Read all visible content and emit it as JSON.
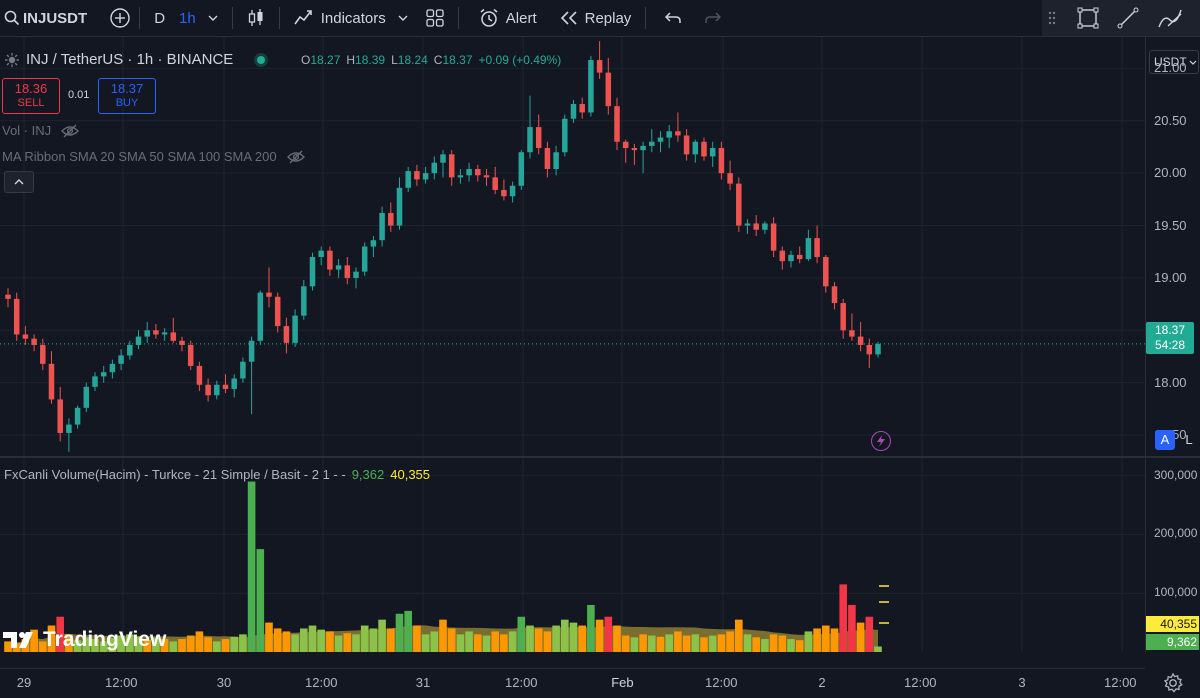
{
  "toolbar": {
    "symbol": "INJUSDT",
    "interval_d": "D",
    "interval_h": "1h",
    "indicators": "Indicators",
    "alert": "Alert",
    "replay": "Replay"
  },
  "legend": {
    "title": "INJ / TetherUS · 1h · BINANCE",
    "o_label": "O",
    "o": "18.27",
    "h_label": "H",
    "h": "18.39",
    "l_label": "L",
    "l": "18.24",
    "c_label": "C",
    "c": "18.37",
    "change": "+0.09 (+0.49%)",
    "sell_price": "18.36",
    "sell_label": "SELL",
    "spread": "0.01",
    "buy_price": "18.37",
    "buy_label": "BUY",
    "vol_indicator": "Vol · INJ",
    "ma_indicator": "MA Ribbon SMA 20 SMA 50 SMA 100 SMA 200",
    "collapse": "^"
  },
  "volume_legend": {
    "title": "FxCanli Volume(Hacim) - Turkce - 21 Simple / Basit - 2 1 - -",
    "val1": "9,362",
    "val2": "40,355"
  },
  "currency": "USDT",
  "price_axis": [
    "21.00",
    "20.50",
    "20.00",
    "19.50",
    "19.00",
    "18.50",
    "18.00",
    "17.50"
  ],
  "last_price": "18.37",
  "countdown": "54:28",
  "volume_axis": [
    "300,000",
    "200,000",
    "100,000"
  ],
  "volume_badges": {
    "avg": "40,355",
    "last": "9,362"
  },
  "time_axis": [
    "29",
    "12:00",
    "30",
    "12:00",
    "31",
    "12:00",
    "Feb",
    "12:00",
    "2",
    "12:00",
    "3",
    "12:00"
  ],
  "scale_buttons": {
    "auto": "A",
    "log": "L"
  },
  "watermark": "TradingView",
  "colors": {
    "up": "#26a69a",
    "down": "#ef5350",
    "background": "#131722",
    "vol_green": "#4caf50",
    "vol_orange": "#ff9800",
    "vol_red": "#f23645"
  },
  "chart_data": {
    "type": "candlestick",
    "ylim": [
      17.3,
      21.3
    ],
    "candles": [
      [
        18.84,
        18.9,
        18.72,
        18.8
      ],
      [
        18.8,
        18.86,
        18.4,
        18.46
      ],
      [
        18.46,
        18.54,
        18.36,
        18.42
      ],
      [
        18.42,
        18.46,
        18.3,
        18.36
      ],
      [
        18.36,
        18.42,
        18.12,
        18.18
      ],
      [
        18.18,
        18.3,
        17.8,
        17.84
      ],
      [
        17.84,
        17.96,
        17.44,
        17.52
      ],
      [
        17.52,
        17.66,
        17.34,
        17.6
      ],
      [
        17.6,
        17.78,
        17.56,
        17.76
      ],
      [
        17.76,
        18.0,
        17.72,
        17.96
      ],
      [
        17.96,
        18.1,
        17.92,
        18.06
      ],
      [
        18.06,
        18.16,
        18.0,
        18.1
      ],
      [
        18.1,
        18.22,
        18.04,
        18.18
      ],
      [
        18.18,
        18.32,
        18.12,
        18.26
      ],
      [
        18.26,
        18.4,
        18.22,
        18.36
      ],
      [
        18.36,
        18.5,
        18.32,
        18.44
      ],
      [
        18.44,
        18.58,
        18.38,
        18.5
      ],
      [
        18.5,
        18.56,
        18.42,
        18.46
      ],
      [
        18.46,
        18.52,
        18.4,
        18.48
      ],
      [
        18.48,
        18.62,
        18.38,
        18.4
      ],
      [
        18.4,
        18.44,
        18.3,
        18.36
      ],
      [
        18.36,
        18.4,
        18.12,
        18.16
      ],
      [
        18.16,
        18.2,
        17.92,
        17.98
      ],
      [
        17.98,
        18.04,
        17.82,
        17.88
      ],
      [
        17.88,
        18.02,
        17.84,
        17.98
      ],
      [
        17.98,
        18.08,
        17.9,
        17.94
      ],
      [
        17.94,
        18.08,
        17.86,
        18.04
      ],
      [
        18.04,
        18.24,
        18.0,
        18.2
      ],
      [
        18.2,
        18.44,
        17.7,
        18.4
      ],
      [
        18.4,
        18.88,
        18.36,
        18.86
      ],
      [
        18.86,
        19.1,
        18.72,
        18.82
      ],
      [
        18.82,
        18.86,
        18.48,
        18.54
      ],
      [
        18.54,
        18.62,
        18.28,
        18.38
      ],
      [
        18.38,
        18.7,
        18.34,
        18.64
      ],
      [
        18.64,
        18.98,
        18.6,
        18.92
      ],
      [
        18.92,
        19.24,
        18.88,
        19.2
      ],
      [
        19.2,
        19.3,
        19.12,
        19.26
      ],
      [
        19.26,
        19.3,
        19.02,
        19.08
      ],
      [
        19.08,
        19.18,
        19.0,
        19.12
      ],
      [
        19.12,
        19.2,
        18.94,
        19.0
      ],
      [
        19.0,
        19.1,
        18.9,
        19.06
      ],
      [
        19.06,
        19.34,
        19.02,
        19.3
      ],
      [
        19.3,
        19.4,
        19.2,
        19.36
      ],
      [
        19.36,
        19.68,
        19.3,
        19.62
      ],
      [
        19.62,
        19.72,
        19.44,
        19.5
      ],
      [
        19.5,
        19.96,
        19.46,
        19.86
      ],
      [
        19.86,
        20.06,
        19.82,
        20.02
      ],
      [
        20.02,
        20.08,
        19.88,
        19.94
      ],
      [
        19.94,
        20.06,
        19.9,
        20.0
      ],
      [
        20.0,
        20.16,
        19.94,
        20.1
      ],
      [
        20.1,
        20.22,
        19.96,
        20.18
      ],
      [
        20.18,
        20.22,
        19.88,
        19.96
      ],
      [
        19.96,
        20.04,
        19.9,
        19.98
      ],
      [
        19.98,
        20.1,
        19.92,
        20.04
      ],
      [
        20.04,
        20.08,
        19.92,
        19.98
      ],
      [
        19.98,
        20.04,
        19.88,
        19.96
      ],
      [
        19.96,
        20.06,
        19.8,
        19.84
      ],
      [
        19.84,
        19.94,
        19.74,
        19.78
      ],
      [
        19.78,
        19.92,
        19.72,
        19.88
      ],
      [
        19.88,
        20.22,
        19.84,
        20.2
      ],
      [
        20.2,
        20.74,
        20.14,
        20.44
      ],
      [
        20.44,
        20.56,
        20.18,
        20.24
      ],
      [
        20.24,
        20.3,
        19.96,
        20.04
      ],
      [
        20.04,
        20.26,
        19.98,
        20.2
      ],
      [
        20.2,
        20.56,
        20.16,
        20.52
      ],
      [
        20.52,
        20.7,
        20.48,
        20.66
      ],
      [
        20.66,
        20.72,
        20.52,
        20.58
      ],
      [
        20.58,
        21.12,
        20.54,
        21.08
      ],
      [
        21.08,
        21.26,
        20.9,
        20.96
      ],
      [
        20.96,
        21.1,
        20.56,
        20.64
      ],
      [
        20.64,
        20.72,
        20.22,
        20.3
      ],
      [
        20.3,
        20.32,
        20.1,
        20.24
      ],
      [
        20.24,
        20.28,
        20.08,
        20.22
      ],
      [
        20.22,
        20.3,
        20.0,
        20.26
      ],
      [
        20.26,
        20.42,
        20.2,
        20.3
      ],
      [
        20.3,
        20.4,
        20.2,
        20.34
      ],
      [
        20.34,
        20.46,
        20.24,
        20.4
      ],
      [
        20.4,
        20.58,
        20.3,
        20.36
      ],
      [
        20.36,
        20.42,
        20.12,
        20.18
      ],
      [
        20.18,
        20.32,
        20.1,
        20.3
      ],
      [
        20.3,
        20.34,
        20.12,
        20.16
      ],
      [
        20.16,
        20.3,
        20.06,
        20.24
      ],
      [
        20.24,
        20.3,
        19.94,
        20.0
      ],
      [
        20.0,
        20.12,
        19.84,
        19.9
      ],
      [
        19.9,
        19.96,
        19.44,
        19.5
      ],
      [
        19.5,
        19.56,
        19.42,
        19.52
      ],
      [
        19.52,
        19.6,
        19.4,
        19.46
      ],
      [
        19.46,
        19.54,
        19.42,
        19.52
      ],
      [
        19.52,
        19.58,
        19.2,
        19.26
      ],
      [
        19.26,
        19.3,
        19.08,
        19.16
      ],
      [
        19.16,
        19.26,
        19.1,
        19.22
      ],
      [
        19.22,
        19.3,
        19.14,
        19.18
      ],
      [
        19.18,
        19.46,
        19.16,
        19.38
      ],
      [
        19.38,
        19.5,
        19.14,
        19.2
      ],
      [
        19.2,
        19.22,
        18.86,
        18.92
      ],
      [
        18.92,
        18.96,
        18.7,
        18.76
      ],
      [
        18.76,
        18.8,
        18.42,
        18.5
      ],
      [
        18.5,
        18.66,
        18.4,
        18.44
      ],
      [
        18.44,
        18.58,
        18.3,
        18.36
      ],
      [
        18.36,
        18.42,
        18.14,
        18.27
      ],
      [
        18.27,
        18.39,
        18.24,
        18.37
      ]
    ],
    "volume": [
      [
        18000,
        "r"
      ],
      [
        15000,
        "r"
      ],
      [
        22000,
        "r"
      ],
      [
        38000,
        "r"
      ],
      [
        18000,
        "r"
      ],
      [
        45000,
        "r"
      ],
      [
        60000,
        "r"
      ],
      [
        30000,
        "r"
      ],
      [
        20000,
        "g"
      ],
      [
        25000,
        "g"
      ],
      [
        22000,
        "g"
      ],
      [
        18000,
        "g"
      ],
      [
        24000,
        "g"
      ],
      [
        28000,
        "g"
      ],
      [
        30000,
        "g"
      ],
      [
        26000,
        "g"
      ],
      [
        20000,
        "r"
      ],
      [
        24000,
        "g"
      ],
      [
        22000,
        "r"
      ],
      [
        18000,
        "g"
      ],
      [
        22000,
        "r"
      ],
      [
        28000,
        "r"
      ],
      [
        35000,
        "r"
      ],
      [
        25000,
        "r"
      ],
      [
        18000,
        "g"
      ],
      [
        22000,
        "r"
      ],
      [
        26000,
        "g"
      ],
      [
        30000,
        "g"
      ],
      [
        290000,
        "g"
      ],
      [
        175000,
        "g"
      ],
      [
        50000,
        "r"
      ],
      [
        40000,
        "r"
      ],
      [
        35000,
        "r"
      ],
      [
        30000,
        "g"
      ],
      [
        40000,
        "g"
      ],
      [
        45000,
        "g"
      ],
      [
        38000,
        "g"
      ],
      [
        35000,
        "r"
      ],
      [
        28000,
        "g"
      ],
      [
        32000,
        "r"
      ],
      [
        30000,
        "g"
      ],
      [
        45000,
        "g"
      ],
      [
        40000,
        "g"
      ],
      [
        55000,
        "g"
      ],
      [
        40000,
        "r"
      ],
      [
        65000,
        "g"
      ],
      [
        70000,
        "g"
      ],
      [
        45000,
        "r"
      ],
      [
        30000,
        "g"
      ],
      [
        35000,
        "g"
      ],
      [
        55000,
        "r"
      ],
      [
        40000,
        "r"
      ],
      [
        30000,
        "g"
      ],
      [
        35000,
        "g"
      ],
      [
        30000,
        "r"
      ],
      [
        28000,
        "g"
      ],
      [
        35000,
        "r"
      ],
      [
        30000,
        "r"
      ],
      [
        35000,
        "g"
      ],
      [
        60000,
        "g"
      ],
      [
        45000,
        "g"
      ],
      [
        40000,
        "r"
      ],
      [
        35000,
        "r"
      ],
      [
        45000,
        "g"
      ],
      [
        55000,
        "g"
      ],
      [
        50000,
        "g"
      ],
      [
        45000,
        "r"
      ],
      [
        80000,
        "g"
      ],
      [
        55000,
        "r"
      ],
      [
        60000,
        "r"
      ],
      [
        45000,
        "r"
      ],
      [
        28000,
        "r"
      ],
      [
        25000,
        "g"
      ],
      [
        30000,
        "r"
      ],
      [
        28000,
        "g"
      ],
      [
        26000,
        "r"
      ],
      [
        30000,
        "g"
      ],
      [
        35000,
        "r"
      ],
      [
        28000,
        "r"
      ],
      [
        30000,
        "g"
      ],
      [
        25000,
        "r"
      ],
      [
        28000,
        "g"
      ],
      [
        30000,
        "r"
      ],
      [
        35000,
        "r"
      ],
      [
        55000,
        "r"
      ],
      [
        30000,
        "g"
      ],
      [
        25000,
        "r"
      ],
      [
        22000,
        "g"
      ],
      [
        30000,
        "r"
      ],
      [
        28000,
        "r"
      ],
      [
        22000,
        "g"
      ],
      [
        20000,
        "r"
      ],
      [
        35000,
        "g"
      ],
      [
        40000,
        "r"
      ],
      [
        45000,
        "r"
      ],
      [
        40000,
        "r"
      ],
      [
        115000,
        "r"
      ],
      [
        80000,
        "r"
      ],
      [
        50000,
        "r"
      ],
      [
        60000,
        "r"
      ],
      [
        9362,
        "g"
      ]
    ]
  }
}
